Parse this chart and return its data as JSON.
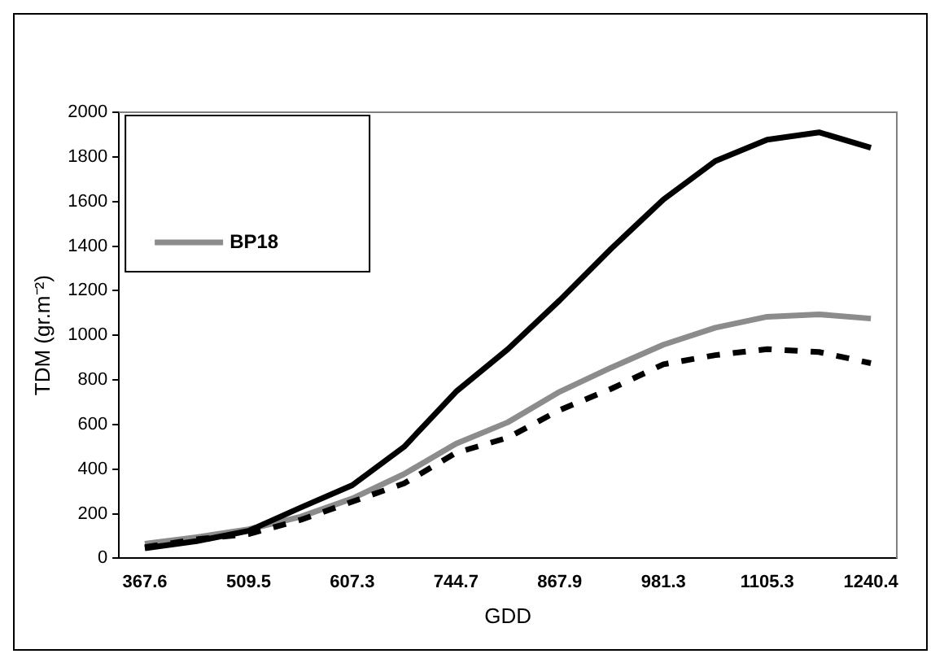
{
  "chart_data": {
    "type": "line",
    "xlabel": "GDD",
    "ylabel": "TDM (gr.m⁻²)",
    "categories": [
      "367.6",
      null,
      "509.5",
      null,
      "607.3",
      null,
      "744.7",
      null,
      "867.9",
      null,
      "981.3",
      null,
      "1105.3",
      null,
      "1240.4"
    ],
    "ylim": [
      0,
      2000
    ],
    "yticks": [
      0,
      200,
      400,
      600,
      800,
      1000,
      1200,
      1400,
      1600,
      1800,
      2000
    ],
    "grid": false,
    "legend": "top left",
    "marker": "none",
    "series": [
      {
        "color": "#000000",
        "line_style": "solid",
        "values": [
          45,
          77,
          123,
          227,
          328,
          500,
          747,
          938,
          1157,
          1390,
          1609,
          1781,
          1877,
          1910,
          1841
        ]
      },
      {
        "color": "#000000",
        "line_style": "dashed",
        "values": [
          50,
          85,
          109,
          172,
          254,
          336,
          473,
          541,
          665,
          761,
          870,
          911,
          938,
          925,
          875
        ]
      },
      {
        "name": "BP18",
        "color": "#8c8c8c",
        "line_style": "solid",
        "values": [
          65,
          95,
          130,
          186,
          268,
          378,
          514,
          610,
          747,
          856,
          958,
          1034,
          1083,
          1094,
          1075
        ]
      }
    ]
  }
}
